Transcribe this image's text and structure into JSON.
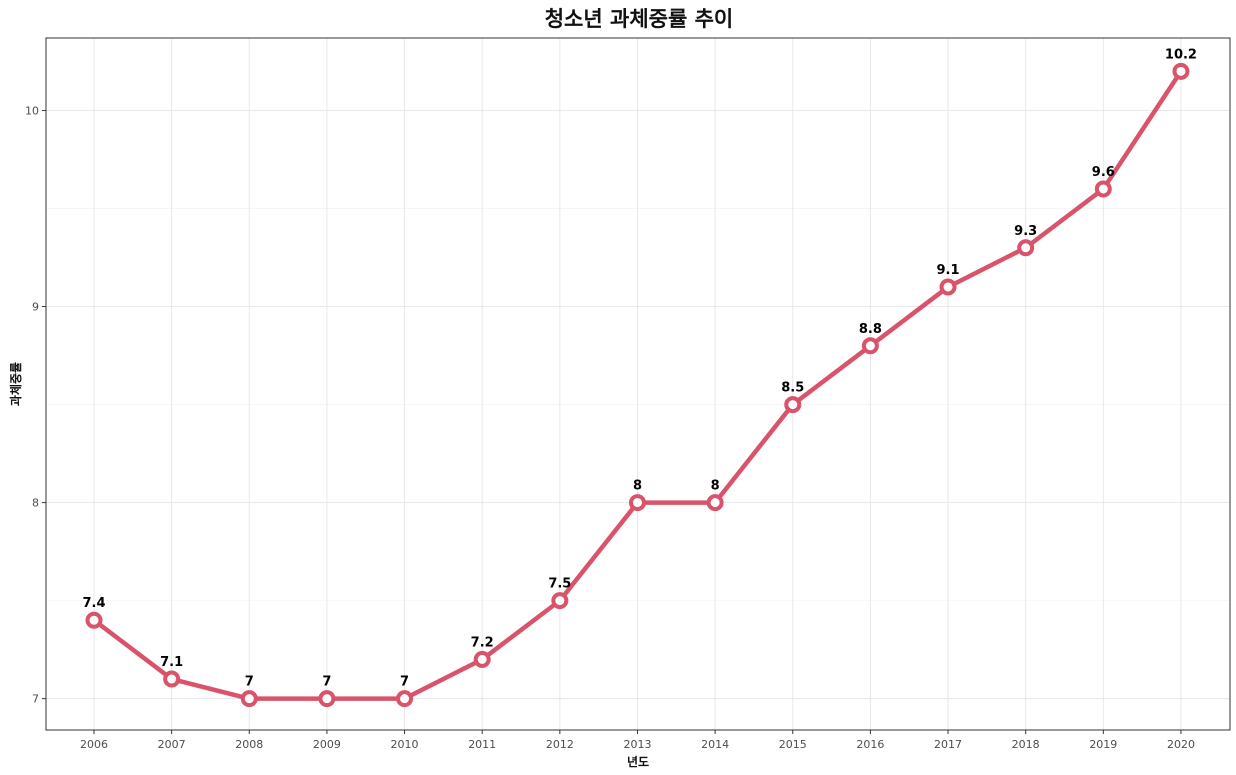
{
  "chart_data": {
    "type": "line",
    "title": "청소년 과체중률 추이",
    "xlabel": "년도",
    "ylabel": "과체중률",
    "x": [
      "2006",
      "2007",
      "2008",
      "2009",
      "2010",
      "2011",
      "2012",
      "2013",
      "2014",
      "2015",
      "2016",
      "2017",
      "2018",
      "2019",
      "2020"
    ],
    "series": [
      {
        "values": [
          7.4,
          7.1,
          7,
          7,
          7,
          7.2,
          7.5,
          8,
          8,
          8.5,
          8.8,
          9.1,
          9.3,
          9.6,
          10.2
        ],
        "labels": [
          "7.4",
          "7.1",
          "7",
          "7",
          "7",
          "7.2",
          "7.5",
          "8",
          "8",
          "8.5",
          "8.8",
          "9.1",
          "9.3",
          "9.6",
          "10.2"
        ],
        "color": "#d9536a"
      }
    ],
    "yticks": [
      7,
      8,
      9,
      10
    ],
    "ytick_labels": [
      "7",
      "8",
      "9",
      "10"
    ],
    "ylim": [
      6.84,
      10.37
    ],
    "grid": true,
    "legend": "none"
  }
}
